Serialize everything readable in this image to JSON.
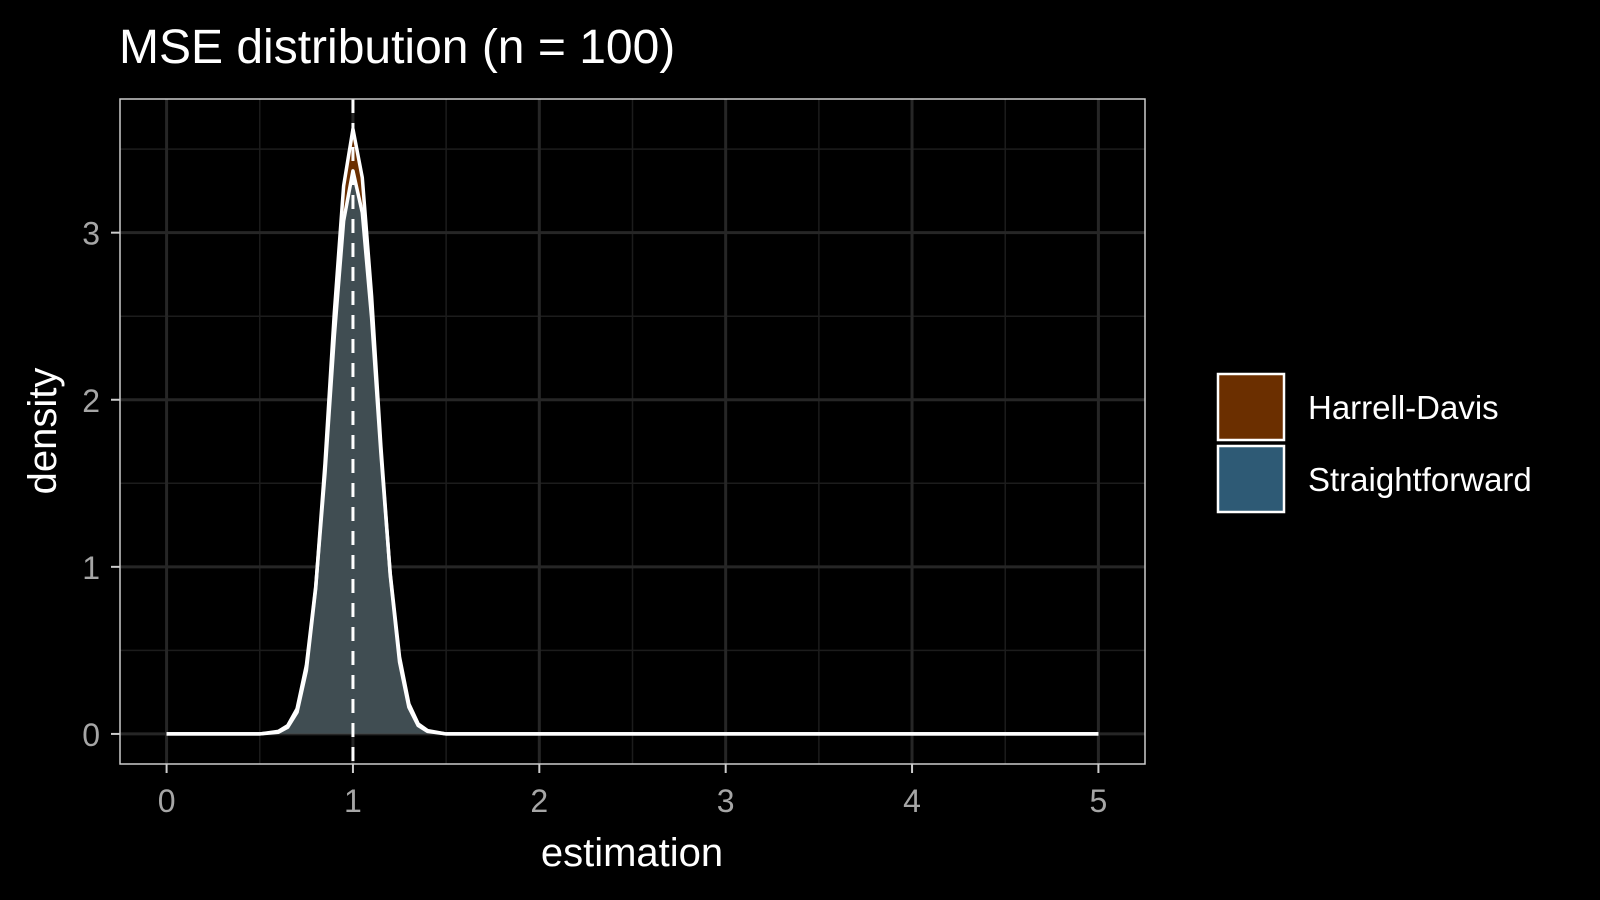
{
  "chart_data": {
    "type": "area",
    "title": "MSE distribution (n = 100)",
    "xlabel": "estimation",
    "ylabel": "density",
    "xlim": [
      -0.25,
      5.25
    ],
    "ylim": [
      -0.18,
      3.8
    ],
    "x_ticks": [
      0,
      1,
      2,
      3,
      4,
      5
    ],
    "y_ticks": [
      0,
      1,
      2,
      3
    ],
    "x_tick_labels": [
      "0",
      "1",
      "2",
      "3",
      "4",
      "5"
    ],
    "y_tick_labels": [
      "0",
      "1",
      "2",
      "3"
    ],
    "grid": true,
    "reference_line": {
      "x": 1,
      "style": "dashed",
      "color": "#ffffff"
    },
    "legend_position": "right",
    "series": [
      {
        "name": "Harrell-Davis",
        "color": "#6b2f00",
        "x": [
          0,
          0.3,
          0.5,
          0.6,
          0.65,
          0.7,
          0.75,
          0.8,
          0.85,
          0.9,
          0.95,
          1.0,
          1.05,
          1.1,
          1.15,
          1.2,
          1.25,
          1.3,
          1.35,
          1.4,
          1.5,
          1.7,
          2.0,
          3.0,
          4.0,
          5.0
        ],
        "y": [
          0,
          0,
          0,
          0.01,
          0.04,
          0.13,
          0.38,
          0.87,
          1.62,
          2.52,
          3.28,
          3.62,
          3.33,
          2.62,
          1.72,
          0.95,
          0.43,
          0.16,
          0.05,
          0.015,
          0,
          0,
          0,
          0,
          0,
          0
        ]
      },
      {
        "name": "Straightforward",
        "color": "#2e5a75",
        "x": [
          0,
          0.3,
          0.5,
          0.6,
          0.65,
          0.7,
          0.75,
          0.8,
          0.85,
          0.9,
          0.95,
          1.0,
          1.05,
          1.1,
          1.15,
          1.2,
          1.25,
          1.3,
          1.35,
          1.4,
          1.5,
          1.7,
          2.0,
          3.0,
          4.0,
          5.0
        ],
        "y": [
          0,
          0,
          0,
          0.015,
          0.05,
          0.15,
          0.41,
          0.88,
          1.56,
          2.38,
          3.07,
          3.37,
          3.12,
          2.49,
          1.68,
          0.96,
          0.46,
          0.18,
          0.06,
          0.02,
          0,
          0,
          0,
          0,
          0,
          0
        ]
      }
    ]
  }
}
